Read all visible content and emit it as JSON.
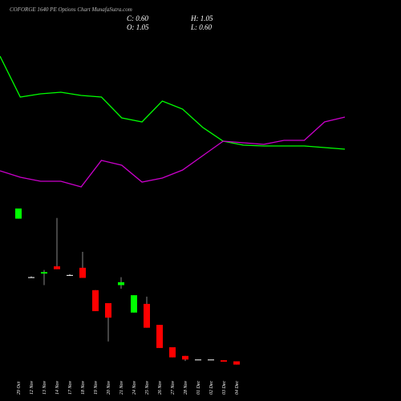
{
  "chart_data": {
    "type": "candlestick",
    "title": "COFORGE 1640 PE Options Chart MunafaSutra.com",
    "ohlc_box": {
      "close": "C: 0.60",
      "high": "H: 1.05",
      "open": "O: 1.05",
      "low": "L: 0.60"
    },
    "categories": [
      "29 Oct",
      "12 Nov",
      "13 Nov",
      "14 Nov",
      "17 Nov",
      "18 Nov",
      "19 Nov",
      "20 Nov",
      "21 Nov",
      "24 Nov",
      "25 Nov",
      "26 Nov",
      "27 Nov",
      "28 Nov",
      "01 Dec",
      "02 Dec",
      "03 Dec",
      "04 Dec"
    ],
    "open": [
      20.8,
      12.7,
      13.2,
      14.2,
      13.0,
      14.0,
      10.9,
      9.1,
      11.6,
      7.8,
      9.0,
      6.1,
      3.0,
      1.8,
      1.3,
      1.3,
      1.2,
      1.05
    ],
    "high": [
      22.2,
      12.8,
      13.7,
      20.9,
      13.1,
      16.2,
      10.9,
      9.1,
      12.7,
      10.2,
      10.0,
      6.1,
      3.0,
      1.8,
      1.3,
      1.3,
      1.2,
      1.05
    ],
    "low": [
      20.8,
      12.6,
      11.6,
      13.8,
      12.9,
      12.6,
      8.0,
      3.8,
      11.1,
      7.8,
      5.7,
      2.9,
      1.6,
      1.1,
      1.3,
      1.3,
      1.0,
      0.6
    ],
    "close": [
      22.2,
      12.7,
      13.4,
      13.8,
      13.0,
      12.6,
      8.0,
      7.1,
      12.0,
      10.2,
      5.7,
      2.9,
      1.6,
      1.3,
      1.3,
      1.3,
      1.0,
      0.6
    ],
    "up_color": "#00ff00",
    "down_color": "#ff0000",
    "ylim": [
      0,
      22.2
    ],
    "y2lim": [
      0,
      250
    ],
    "series": [
      {
        "color": "#00ff00",
        "axis": "y2",
        "values": [
          180,
          129,
          133,
          135,
          131,
          129,
          103,
          98,
          124,
          114,
          91,
          74,
          69,
          68,
          68,
          68,
          66,
          64
        ]
      },
      {
        "color": "#cc00cc",
        "axis": "y2",
        "values": [
          37,
          29,
          24,
          24,
          17,
          50,
          44,
          23,
          28,
          38,
          56,
          74,
          72,
          70,
          75,
          75,
          98,
          104
        ]
      }
    ]
  }
}
